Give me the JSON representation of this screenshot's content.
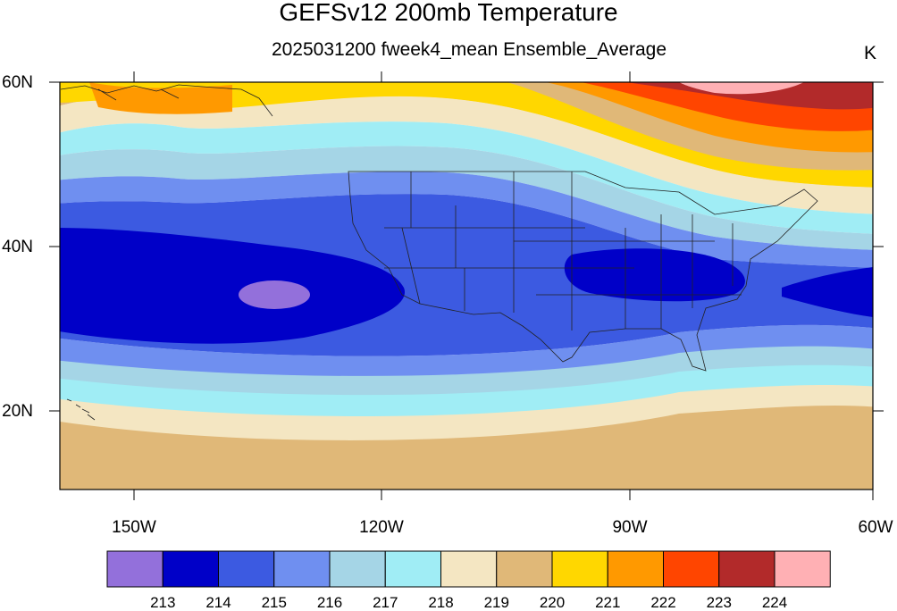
{
  "title": "GEFSv12 200mb Temperature",
  "subtitle": "2025031200 fweek4_mean Ensemble_Average",
  "units": "K",
  "lat_labels": [
    "60N",
    "40N",
    "20N"
  ],
  "lon_labels": [
    "150W",
    "120W",
    "90W",
    "60W"
  ],
  "colorbar": {
    "colors": [
      "#9370db",
      "#0000c8",
      "#3c5ae1",
      "#6f8ff0",
      "#a5d5e6",
      "#a0edf5",
      "#f4e6c2",
      "#e0b878",
      "#ffd700",
      "#ff9900",
      "#ff4500",
      "#b22a2a",
      "#ffb0b4"
    ],
    "labels": [
      "213",
      "214",
      "215",
      "216",
      "217",
      "218",
      "219",
      "220",
      "221",
      "222",
      "223",
      "224"
    ]
  },
  "chart_data": {
    "type": "heatmap",
    "title": "GEFSv12 200mb Temperature",
    "subtitle": "2025031200 fweek4_mean Ensemble_Average",
    "units": "K",
    "variable": "200mb Temperature",
    "lat_range": [
      10,
      60
    ],
    "lon_range": [
      -160,
      -60
    ],
    "contour_levels": [
      213,
      214,
      215,
      216,
      217,
      218,
      219,
      220,
      221,
      222,
      223,
      224
    ],
    "features": [
      {
        "name": "minimum",
        "value_range": "<213",
        "center": [
          -135,
          34
        ]
      },
      {
        "name": "cold band",
        "value_range": "214-215",
        "lat_band": [
          28,
          40
        ]
      },
      {
        "name": "maximum",
        "value_range": ">224",
        "center": [
          -76,
          59
        ]
      }
    ]
  }
}
